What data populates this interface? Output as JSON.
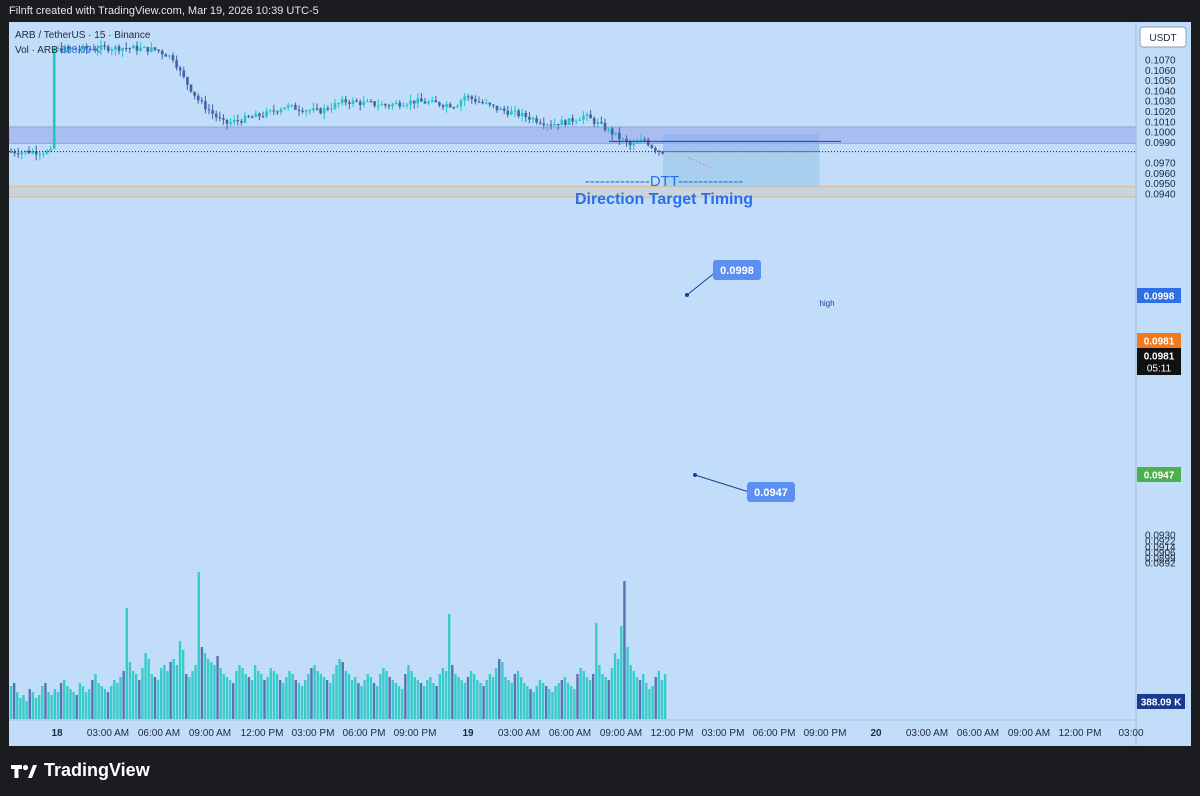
{
  "header": {
    "credit": "Filnft created with TradingView.com, Mar 19, 2026 10:39 UTC-5"
  },
  "legend": {
    "symbol_line": "ARB / TetherUS · 15 · Binance",
    "volume_label": "Vol · ARB",
    "volume_value": "388.09 K"
  },
  "axis": {
    "currency_button": "USDT",
    "price_ticks": [
      "0.1070",
      "0.1060",
      "0.1050",
      "0.1040",
      "0.1030",
      "0.1020",
      "0.1010",
      "0.1000",
      "0.0990",
      "0.0970",
      "0.0960",
      "0.0950",
      "0.0940",
      "0.0930",
      "0.0922",
      "0.0914",
      "0.0906",
      "0.0899",
      "0.0892"
    ],
    "time_ticks": [
      "18",
      "03:00 AM",
      "06:00 AM",
      "09:00 AM",
      "12:00 PM",
      "03:00 PM",
      "06:00 PM",
      "09:00 PM",
      "19",
      "03:00 AM",
      "06:00 AM",
      "09:00 AM",
      "12:00 PM",
      "03:00 PM",
      "06:00 PM",
      "09:00 PM",
      "20",
      "03:00 AM",
      "06:00 AM",
      "09:00 AM",
      "12:00 PM",
      "03:00"
    ]
  },
  "price_tags": {
    "high": "0.0998",
    "last_alert": "0.0981",
    "current_price": "0.0981",
    "countdown": "05:11",
    "target": "0.0947",
    "volume": "388.09 K"
  },
  "annotations": {
    "dtt_line": "-------------DTT-------------",
    "dtt_title": "Direction Target Timing",
    "high_label": "high",
    "callout_upper": "0.0998",
    "callout_lower": "0.0947"
  },
  "colors": {
    "background": "#c2ddf9",
    "bull": "#1ec8c2",
    "bear": "#3f63a6",
    "resistance_zone": "#a9bdf1",
    "target_zone": "#c9d4de",
    "forecast_box": "#a4cdec",
    "callout": "#5b8ff0",
    "current_price_tag": "#111111",
    "alert_tag": "#f07a1c",
    "target_tag": "#4caf50",
    "high_tag": "#2f6fe6",
    "volume_tag": "#1a3a8f"
  },
  "brand": {
    "name": "TradingView"
  },
  "chart_data": {
    "type": "candlestick",
    "symbol": "ARB / TetherUS",
    "interval": "15",
    "exchange": "Binance",
    "ylim": [
      0.0887,
      0.1078
    ],
    "x_range": [
      "Mar 18 00:00",
      "Mar 20 15:00"
    ],
    "price_path": [
      {
        "t": "Mar 18 00:00",
        "p": 0.108
      },
      {
        "t": "Mar 18 04:00",
        "p": 0.1082
      },
      {
        "t": "Mar 18 06:00",
        "p": 0.108
      },
      {
        "t": "Mar 18 07:00",
        "p": 0.1072
      },
      {
        "t": "Mar 18 07:30",
        "p": 0.1055
      },
      {
        "t": "Mar 18 08:30",
        "p": 0.103
      },
      {
        "t": "Mar 18 09:30",
        "p": 0.1015
      },
      {
        "t": "Mar 18 10:00",
        "p": 0.1008
      },
      {
        "t": "Mar 18 11:30",
        "p": 0.1014
      },
      {
        "t": "Mar 18 12:30",
        "p": 0.1018
      },
      {
        "t": "Mar 18 13:30",
        "p": 0.1025
      },
      {
        "t": "Mar 18 15:30",
        "p": 0.102
      },
      {
        "t": "Mar 18 17:00",
        "p": 0.103
      },
      {
        "t": "Mar 18 19:30",
        "p": 0.1026
      },
      {
        "t": "Mar 18 21:00",
        "p": 0.103
      },
      {
        "t": "Mar 18 23:30",
        "p": 0.1026
      },
      {
        "t": "Mar 19 00:00",
        "p": 0.1035
      },
      {
        "t": "Mar 19 02:00",
        "p": 0.1022
      },
      {
        "t": "Mar 19 03:00",
        "p": 0.1018
      },
      {
        "t": "Mar 19 05:00",
        "p": 0.1008
      },
      {
        "t": "Mar 19 06:00",
        "p": 0.101
      },
      {
        "t": "Mar 19 07:00",
        "p": 0.1016
      },
      {
        "t": "Mar 19 08:00",
        "p": 0.1006
      },
      {
        "t": "Mar 19 09:00",
        "p": 0.0995
      },
      {
        "t": "Mar 19 09:45",
        "p": 0.0986
      },
      {
        "t": "Mar 19 10:30",
        "p": 0.0993
      },
      {
        "t": "Mar 19 11:00",
        "p": 0.0985
      },
      {
        "t": "Mar 19 11:30",
        "p": 0.0981
      }
    ],
    "volume_k": [
      22,
      24,
      18,
      14,
      16,
      12,
      20,
      18,
      14,
      16,
      22,
      24,
      18,
      16,
      20,
      18,
      24,
      26,
      22,
      20,
      18,
      16,
      24,
      22,
      18,
      20,
      26,
      30,
      24,
      22,
      20,
      18,
      22,
      26,
      24,
      28,
      32,
      74,
      38,
      32,
      30,
      26,
      34,
      44,
      40,
      30,
      28,
      26,
      34,
      36,
      32,
      38,
      40,
      36,
      52,
      46,
      30,
      28,
      32,
      36,
      98,
      48,
      44,
      40,
      38,
      36,
      42,
      34,
      30,
      28,
      26,
      24,
      32,
      36,
      34,
      30,
      28,
      26,
      36,
      32,
      30,
      26,
      28,
      34,
      32,
      30,
      26,
      24,
      28,
      32,
      30,
      26,
      24,
      22,
      26,
      30,
      34,
      36,
      32,
      30,
      28,
      26,
      24,
      30,
      36,
      40,
      38,
      32,
      30,
      26,
      28,
      24,
      22,
      26,
      30,
      28,
      24,
      22,
      30,
      34,
      32,
      28,
      26,
      24,
      22,
      20,
      30,
      36,
      32,
      28,
      26,
      24,
      22,
      26,
      28,
      24,
      22,
      30,
      34,
      32,
      70,
      36,
      30,
      28,
      26,
      24,
      28,
      32,
      30,
      26,
      24,
      22,
      26,
      30,
      28,
      34,
      40,
      38,
      28,
      26,
      24,
      30,
      32,
      28,
      24,
      22,
      20,
      18,
      22,
      26,
      24,
      22,
      20,
      18,
      22,
      24,
      26,
      28,
      24,
      22,
      20,
      30,
      34,
      32,
      28,
      26,
      30,
      64,
      36,
      30,
      28,
      26,
      34,
      44,
      40,
      62,
      92,
      48,
      36,
      32,
      28,
      26,
      30,
      24,
      20,
      22,
      28,
      32,
      26,
      30
    ],
    "volume_ylim": [
      0,
      120
    ],
    "last_price": 0.0981,
    "current_volume_k": 388.09,
    "levels": [
      {
        "name": "high",
        "price": 0.0998
      },
      {
        "name": "target",
        "price": 0.0947
      }
    ],
    "zones": [
      {
        "from": 0.0989,
        "to": 0.1005
      },
      {
        "from": 0.0937,
        "to": 0.0947
      }
    ],
    "forecast": {
      "from_price": 0.0981,
      "to_price": 0.0947,
      "from_time": "Mar 19 11:30",
      "to_time": "Mar 19 20:30"
    }
  }
}
